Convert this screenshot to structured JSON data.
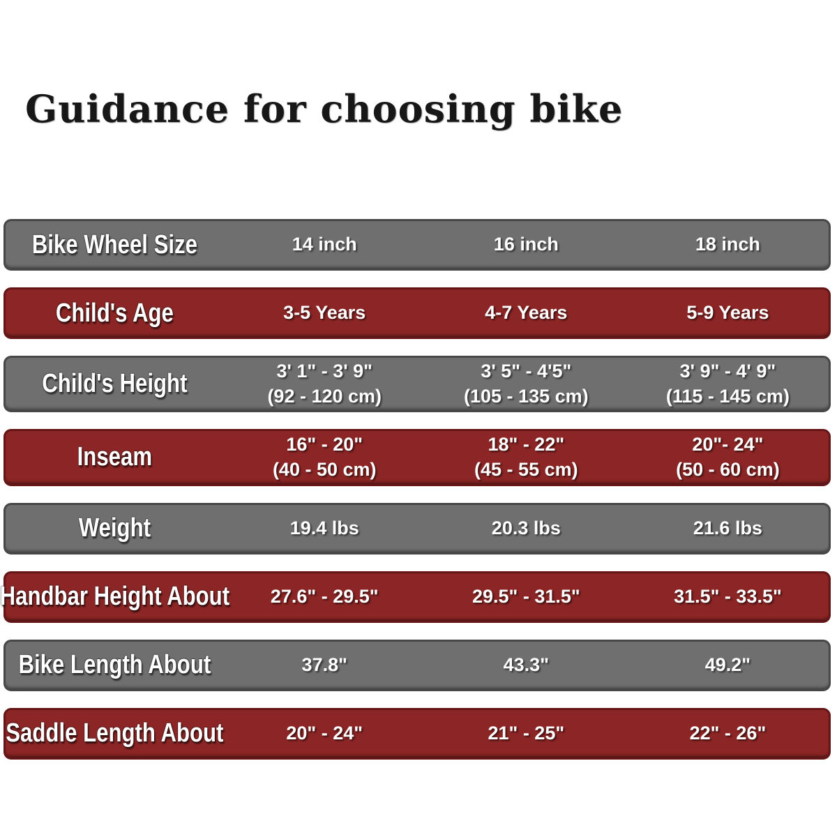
{
  "page": {
    "title": "Guidance for choosing bike",
    "colors": {
      "background": "#ffffff",
      "gray_row": "#6f6f6f",
      "gray_border": "#474747",
      "red_row": "#8c2525",
      "red_border": "#641616",
      "row_text": "#ffffff",
      "title_text": "#171717"
    }
  },
  "table": {
    "rows": [
      {
        "label": "Bike Wheel Size",
        "style": "gray",
        "values": [
          [
            "14 inch"
          ],
          [
            "16 inch"
          ],
          [
            "18 inch"
          ]
        ]
      },
      {
        "label": "Child's Age",
        "style": "red",
        "values": [
          [
            "3-5 Years"
          ],
          [
            "4-7 Years"
          ],
          [
            "5-9 Years"
          ]
        ]
      },
      {
        "label": "Child's Height",
        "style": "gray",
        "values": [
          [
            "3' 1\" - 3' 9\"",
            "(92 - 120 cm)"
          ],
          [
            "3' 5\" - 4'5\"",
            "(105 - 135 cm)"
          ],
          [
            "3' 9\" - 4' 9\"",
            "(115 - 145 cm)"
          ]
        ]
      },
      {
        "label": "Inseam",
        "style": "red",
        "values": [
          [
            "16\" - 20\"",
            "(40 - 50 cm)"
          ],
          [
            "18\" - 22\"",
            "(45 - 55 cm)"
          ],
          [
            "20\"- 24\"",
            "(50 - 60 cm)"
          ]
        ]
      },
      {
        "label": "Weight",
        "style": "gray",
        "values": [
          [
            "19.4 lbs"
          ],
          [
            "20.3 lbs"
          ],
          [
            "21.6 lbs"
          ]
        ]
      },
      {
        "label": "Handbar Height About",
        "style": "red",
        "values": [
          [
            "27.6\" - 29.5\""
          ],
          [
            "29.5\" - 31.5\""
          ],
          [
            "31.5\" - 33.5\""
          ]
        ]
      },
      {
        "label": "Bike Length About",
        "style": "gray",
        "values": [
          [
            "37.8\""
          ],
          [
            "43.3\""
          ],
          [
            "49.2\""
          ]
        ]
      },
      {
        "label": "Saddle Length About",
        "style": "red",
        "values": [
          [
            "20\" - 24\""
          ],
          [
            "21\" - 25\""
          ],
          [
            "22\" - 26\""
          ]
        ]
      }
    ]
  },
  "chart_data": {
    "type": "table",
    "title": "Guidance for choosing bike",
    "columns": [
      "Bike Wheel Size",
      "14 inch",
      "16 inch",
      "18 inch"
    ],
    "rows": [
      [
        "Child's Age",
        "3-5 Years",
        "4-7 Years",
        "5-9 Years"
      ],
      [
        "Child's Height",
        "3' 1\" - 3' 9\" (92 - 120 cm)",
        "3' 5\" - 4'5\" (105 - 135 cm)",
        "3' 9\" - 4' 9\" (115 - 145 cm)"
      ],
      [
        "Inseam",
        "16\" - 20\" (40 - 50 cm)",
        "18\" - 22\" (45 - 55 cm)",
        "20\"- 24\" (50 - 60 cm)"
      ],
      [
        "Weight",
        "19.4 lbs",
        "20.3 lbs",
        "21.6 lbs"
      ],
      [
        "Handbar Height About",
        "27.6\" - 29.5\"",
        "29.5\" - 31.5\"",
        "31.5\" - 33.5\""
      ],
      [
        "Bike Length About",
        "37.8\"",
        "43.3\"",
        "49.2\""
      ],
      [
        "Saddle Length About",
        "20\" - 24\"",
        "21\" - 25\"",
        "22\" - 26\""
      ]
    ]
  }
}
